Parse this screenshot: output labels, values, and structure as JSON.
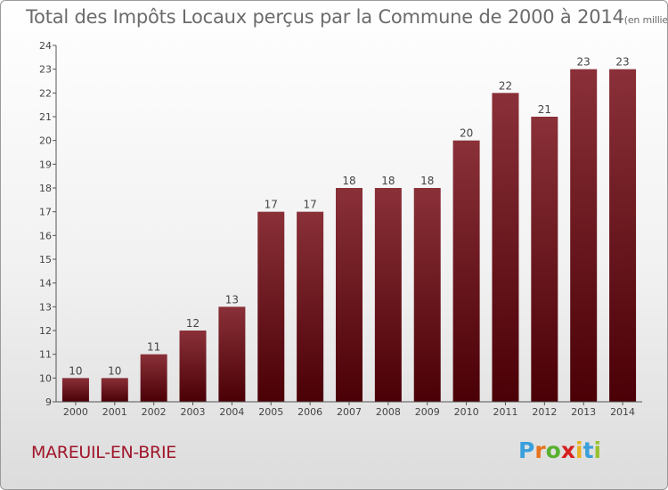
{
  "header": {
    "title": "Total des Impôts Locaux perçus par la Commune de 2000 à 2014",
    "unit_note": "(en milliers d'€)"
  },
  "commune": "MAREUIL-EN-BRIE",
  "logo": {
    "letters": [
      "P",
      "r",
      "o",
      "x",
      "i",
      "t",
      "i"
    ],
    "colors": [
      "#3aa0dc",
      "#e8731c",
      "#58b030",
      "#d62020",
      "#e8b020",
      "#3aa0dc",
      "#9ac030"
    ]
  },
  "colors": {
    "bar_top": "#8a3038",
    "bar_bottom": "#4a0006"
  },
  "chart_data": {
    "type": "bar",
    "title": "Total des Impôts Locaux perçus par la Commune de 2000 à 2014",
    "xlabel": "",
    "ylabel": "",
    "categories": [
      "2000",
      "2001",
      "2002",
      "2003",
      "2004",
      "2005",
      "2006",
      "2007",
      "2008",
      "2009",
      "2010",
      "2011",
      "2012",
      "2013",
      "2014"
    ],
    "values": [
      10,
      10,
      11,
      12,
      13,
      17,
      17,
      18,
      18,
      18,
      20,
      22,
      21,
      23,
      23
    ],
    "ylim": [
      9,
      24
    ],
    "yticks": [
      9,
      10,
      11,
      12,
      13,
      14,
      15,
      16,
      17,
      18,
      19,
      20,
      21,
      22,
      23,
      24
    ],
    "grid": false
  }
}
